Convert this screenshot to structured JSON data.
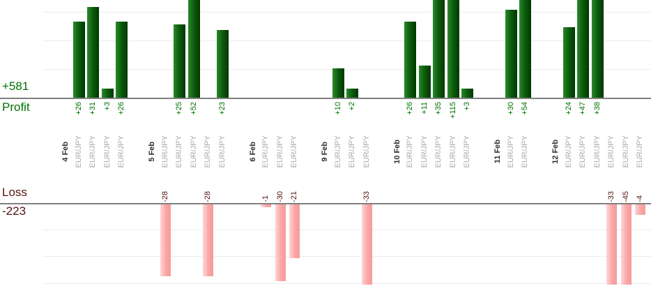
{
  "summary": {
    "profit_total": "+581",
    "profit_label": "Profit",
    "loss_label": "Loss",
    "loss_total": "-223"
  },
  "colors": {
    "profit_text": "#007000",
    "loss_text": "#541212",
    "profit_bar_start": "#2a8a2a",
    "profit_bar_end": "#003700",
    "loss_bar_start": "#fdd6d6",
    "loss_bar_end": "#f79a9a",
    "axis_line": "#7f7f7f",
    "gridline": "#ececec",
    "date_text": "#2f2f2f",
    "symbol_text": "#a8a8a8"
  },
  "chart_data": {
    "type": "bar",
    "orientation": "vertical",
    "panels": [
      "profit",
      "loss"
    ],
    "profit_total": 581,
    "loss_total": -223,
    "grid": true,
    "legend": false,
    "groups": [
      {
        "date": "4 Feb",
        "trades": [
          {
            "symbol": "EUR/JPY",
            "value": 26,
            "label": "+26"
          },
          {
            "symbol": "EUR/JPY",
            "value": 31,
            "label": "+31"
          },
          {
            "symbol": "EUR/JPY",
            "value": 3,
            "label": "+3"
          },
          {
            "symbol": "EUR/JPY",
            "value": 26,
            "label": "+26"
          }
        ]
      },
      {
        "date": "5 Feb",
        "trades": [
          {
            "symbol": "EUR/JPY",
            "value": -28,
            "label": "-28"
          },
          {
            "symbol": "EUR/JPY",
            "value": 25,
            "label": "+25"
          },
          {
            "symbol": "EUR/JPY",
            "value": 52,
            "label": "+52"
          },
          {
            "symbol": "EUR/JPY",
            "value": -28,
            "label": "-28"
          },
          {
            "symbol": "EUR/JPY",
            "value": 23,
            "label": "+23"
          }
        ]
      },
      {
        "date": "6 Feb",
        "trades": [
          {
            "symbol": "EUR/JPY",
            "value": -1,
            "label": "-1"
          },
          {
            "symbol": "EUR/JPY",
            "value": -30,
            "label": "-30"
          },
          {
            "symbol": "EUR/JPY",
            "value": -21,
            "label": "-21"
          }
        ]
      },
      {
        "date": "9 Feb",
        "trades": [
          {
            "symbol": "EUR/JPY",
            "value": 10,
            "label": "+10"
          },
          {
            "symbol": "EUR/JPY",
            "value": 2,
            "label": "+2"
          },
          {
            "symbol": "EUR/JPY",
            "value": -33,
            "label": "-33"
          }
        ]
      },
      {
        "date": "10 Feb",
        "trades": [
          {
            "symbol": "EUR/JPY",
            "value": 26,
            "label": "+26"
          },
          {
            "symbol": "EUR/JPY",
            "value": 11,
            "label": "+11"
          },
          {
            "symbol": "EUR/JPY",
            "value": 35,
            "label": "+35"
          },
          {
            "symbol": "EUR/JPY",
            "value": 115,
            "label": "+115"
          },
          {
            "symbol": "EUR/JPY",
            "value": 3,
            "label": "+3"
          }
        ]
      },
      {
        "date": "11 Feb",
        "trades": [
          {
            "symbol": "EUR/JPY",
            "value": 30,
            "label": "+30"
          },
          {
            "symbol": "EUR/JPY",
            "value": 54,
            "label": "+54"
          }
        ]
      },
      {
        "date": "12 Feb",
        "trades": [
          {
            "symbol": "EUR/JPY",
            "value": 24,
            "label": "+24"
          },
          {
            "symbol": "EUR/JPY",
            "value": 47,
            "label": "+47"
          },
          {
            "symbol": "EUR/JPY",
            "value": 38,
            "label": "+38"
          },
          {
            "symbol": "EUR/JPY",
            "value": -33,
            "label": "-33"
          },
          {
            "symbol": "EUR/JPY",
            "value": -45,
            "label": "-45"
          },
          {
            "symbol": "EUR/JPY",
            "value": -4,
            "label": "-4"
          }
        ]
      }
    ]
  }
}
